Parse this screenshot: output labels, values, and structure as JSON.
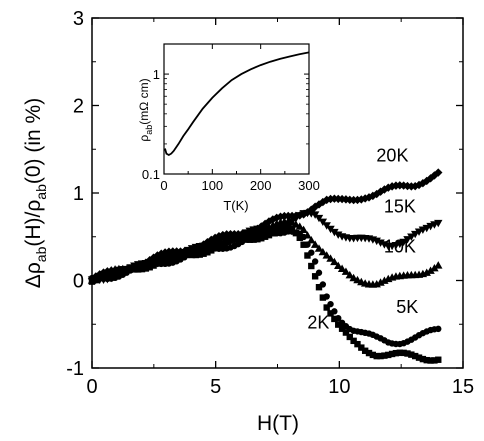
{
  "chart_data": [
    {
      "type": "scatter",
      "xlabel": "H(T)",
      "ylabel": "Δρab(H)/ρab(0) (in %)",
      "ylabel_parts": {
        "delta": "Δρ",
        "sub1": "ab",
        "mid": "(H)/ρ",
        "sub2": "ab",
        "tail": "(0) (in %)"
      },
      "xlim": [
        0,
        15
      ],
      "ylim": [
        -1,
        3
      ],
      "xticks": [
        0,
        5,
        10,
        15
      ],
      "yticks": [
        -1,
        0,
        1,
        2,
        3
      ],
      "grid": false,
      "series": [
        {
          "name": "20K",
          "marker": "diamond",
          "points": [
            [
              0,
              0.02
            ],
            [
              1,
              0.1
            ],
            [
              2,
              0.2
            ],
            [
              3,
              0.29
            ],
            [
              4,
              0.38
            ],
            [
              5,
              0.46
            ],
            [
              6,
              0.55
            ],
            [
              7,
              0.64
            ],
            [
              8,
              0.73
            ],
            [
              8.5,
              0.78
            ],
            [
              9,
              0.86
            ],
            [
              9.5,
              0.9
            ],
            [
              10,
              0.9
            ],
            [
              10.5,
              0.93
            ],
            [
              11,
              0.97
            ],
            [
              11.5,
              0.99
            ],
            [
              12,
              1.03
            ],
            [
              12.5,
              1.07
            ],
            [
              13,
              1.1
            ],
            [
              13.5,
              1.16
            ],
            [
              14,
              1.22
            ]
          ]
        },
        {
          "name": "15K",
          "marker": "triangle-down",
          "points": [
            [
              0,
              0.0
            ],
            [
              1,
              0.08
            ],
            [
              2,
              0.16
            ],
            [
              3,
              0.25
            ],
            [
              4,
              0.33
            ],
            [
              5,
              0.42
            ],
            [
              6,
              0.5
            ],
            [
              7,
              0.59
            ],
            [
              8,
              0.67
            ],
            [
              8.5,
              0.74
            ],
            [
              9,
              0.73
            ],
            [
              9.5,
              0.64
            ],
            [
              10,
              0.55
            ],
            [
              10.5,
              0.48
            ],
            [
              11,
              0.45
            ],
            [
              11.5,
              0.44
            ],
            [
              12,
              0.42
            ],
            [
              12.5,
              0.45
            ],
            [
              13,
              0.5
            ],
            [
              13.5,
              0.56
            ],
            [
              14,
              0.66
            ]
          ]
        },
        {
          "name": "10K",
          "marker": "triangle-up",
          "points": [
            [
              0,
              0.02
            ],
            [
              1,
              0.1
            ],
            [
              2,
              0.18
            ],
            [
              3,
              0.27
            ],
            [
              4,
              0.35
            ],
            [
              5,
              0.43
            ],
            [
              6,
              0.52
            ],
            [
              7,
              0.6
            ],
            [
              8,
              0.65
            ],
            [
              8.5,
              0.62
            ],
            [
              9,
              0.45
            ],
            [
              9.5,
              0.28
            ],
            [
              10,
              0.12
            ],
            [
              10.5,
              0.03
            ],
            [
              11,
              0.0
            ],
            [
              11.5,
              -0.02
            ],
            [
              12,
              0.0
            ],
            [
              12.5,
              0.02
            ],
            [
              13,
              0.07
            ],
            [
              13.5,
              0.12
            ],
            [
              14,
              0.18
            ]
          ]
        },
        {
          "name": "5K",
          "marker": "circle",
          "points": [
            [
              0,
              0.0
            ],
            [
              1,
              0.07
            ],
            [
              2,
              0.14
            ],
            [
              3,
              0.22
            ],
            [
              4,
              0.29
            ],
            [
              5,
              0.37
            ],
            [
              6,
              0.44
            ],
            [
              7,
              0.52
            ],
            [
              8,
              0.6
            ],
            [
              8.5,
              0.52
            ],
            [
              9,
              0.2
            ],
            [
              9.5,
              -0.2
            ],
            [
              10,
              -0.42
            ],
            [
              10.5,
              -0.55
            ],
            [
              11,
              -0.62
            ],
            [
              11.5,
              -0.67
            ],
            [
              12,
              -0.7
            ],
            [
              12.5,
              -0.69
            ],
            [
              13,
              -0.66
            ],
            [
              13.5,
              -0.62
            ],
            [
              14,
              -0.57
            ]
          ]
        },
        {
          "name": "2K",
          "marker": "square",
          "points": [
            [
              0,
              0.02
            ],
            [
              1,
              0.08
            ],
            [
              2,
              0.16
            ],
            [
              3,
              0.23
            ],
            [
              4,
              0.3
            ],
            [
              5,
              0.38
            ],
            [
              6,
              0.45
            ],
            [
              7,
              0.53
            ],
            [
              8,
              0.58
            ],
            [
              8.5,
              0.45
            ],
            [
              9,
              0.1
            ],
            [
              9.5,
              -0.3
            ],
            [
              10,
              -0.55
            ],
            [
              10.5,
              -0.7
            ],
            [
              11,
              -0.78
            ],
            [
              11.5,
              -0.83
            ],
            [
              12,
              -0.85
            ],
            [
              12.5,
              -0.86
            ],
            [
              13,
              -0.87
            ],
            [
              13.5,
              -0.88
            ],
            [
              14,
              -0.88
            ]
          ]
        }
      ]
    },
    {
      "type": "line",
      "xlabel": "T(K)",
      "ylabel": "ρab(mΩ cm)",
      "ylabel_parts": {
        "rho": "ρ",
        "sub": "ab",
        "tail": "(mΩ cm)"
      },
      "xlim": [
        0,
        300
      ],
      "ylim": [
        0.1,
        2
      ],
      "yscale": "log",
      "xticks": [
        0,
        100,
        200,
        300
      ],
      "yticks": [
        0.1,
        1
      ],
      "series": [
        {
          "x": [
            2,
            5,
            10,
            15,
            20,
            30,
            40,
            50,
            60,
            80,
            100,
            120,
            140,
            160,
            180,
            200,
            220,
            240,
            260,
            280,
            300
          ],
          "y": [
            0.18,
            0.16,
            0.155,
            0.16,
            0.17,
            0.2,
            0.24,
            0.28,
            0.33,
            0.45,
            0.58,
            0.72,
            0.87,
            1.0,
            1.12,
            1.23,
            1.33,
            1.42,
            1.5,
            1.58,
            1.65
          ]
        }
      ]
    }
  ]
}
